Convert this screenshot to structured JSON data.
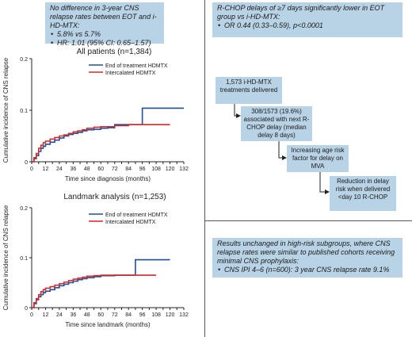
{
  "summary_left": {
    "heading": "No difference in 3-year CNS relapse rates between EOT and i-HD-MTX:",
    "bullets": [
      "5.8% vs 5.7%",
      "HR: 1.01 (95% CI: 0.65–1.57)"
    ]
  },
  "summary_right": {
    "heading": "R-CHOP delays of ≥7 days significantly lower in EOT group vs i-HD-MTX:",
    "bullets": [
      "OR 0.44 (0.33–0.59), p<0.0001"
    ]
  },
  "summary_bottom": {
    "heading": "Results unchanged in high-risk subgroups, where CNS relapse rates were similar to published cohorts receiving minimal CNS prophylaxis:",
    "bullets": [
      "CNS IPI 4–6 (n=600): 3 year CNS relapse rate 9.1%"
    ]
  },
  "flow": {
    "step1": "1,573 i-HD-MTX treatments delivered",
    "step2": "308/1573 (19.6%) associated with next R-CHOP delay (median delay 8 days)",
    "step3": "Increasing age risk factor for delay on MVA",
    "step4": "Reduction in delay risk when delivered <day 10 R-CHOP"
  },
  "colors": {
    "eot": "#1f4e9c",
    "intercalated": "#d12a2a",
    "box_fill": "#b9d3e6"
  },
  "chart_data": [
    {
      "type": "line",
      "title": "All patients (n=1,384)",
      "xlabel": "Time since diagnosis (months)",
      "ylabel": "Cumulative incidence of CNS relapse",
      "xlim": [
        0,
        132
      ],
      "ylim": [
        0,
        0.2
      ],
      "x_ticks": [
        0,
        6,
        12,
        18,
        24,
        30,
        36,
        42,
        48,
        54,
        60,
        66,
        72,
        78,
        84,
        90,
        96,
        102,
        108,
        114,
        120,
        126,
        132
      ],
      "x_tick_labels": [
        "0",
        "",
        "12",
        "",
        "24",
        "",
        "36",
        "",
        "48",
        "",
        "60",
        "",
        "72",
        "",
        "84",
        "",
        "96",
        "",
        "108",
        "",
        "120",
        "",
        "132"
      ],
      "y_ticks": [
        0,
        0.1,
        0.2
      ],
      "y_tick_labels": [
        "0",
        "0.1",
        "0.2"
      ],
      "legend_position": "top-right",
      "series": [
        {
          "name": "End of treatment HDMTX",
          "color": "#1f4e9c",
          "x": [
            0,
            2,
            4,
            6,
            8,
            10,
            12,
            16,
            20,
            24,
            28,
            32,
            36,
            40,
            44,
            48,
            54,
            60,
            66,
            72,
            84,
            96,
            96,
            132
          ],
          "y": [
            0,
            0.006,
            0.012,
            0.02,
            0.026,
            0.03,
            0.034,
            0.038,
            0.042,
            0.046,
            0.05,
            0.053,
            0.055,
            0.057,
            0.06,
            0.062,
            0.063,
            0.065,
            0.066,
            0.072,
            0.072,
            0.072,
            0.104,
            0.104
          ]
        },
        {
          "name": "Intercalated HDMTX",
          "color": "#d12a2a",
          "x": [
            0,
            2,
            4,
            6,
            8,
            10,
            12,
            16,
            20,
            24,
            28,
            32,
            36,
            40,
            44,
            48,
            54,
            60,
            72,
            84,
            96,
            108,
            120
          ],
          "y": [
            0,
            0.008,
            0.016,
            0.026,
            0.032,
            0.037,
            0.04,
            0.044,
            0.047,
            0.05,
            0.052,
            0.055,
            0.058,
            0.06,
            0.062,
            0.065,
            0.067,
            0.068,
            0.07,
            0.072,
            0.072,
            0.072,
            0.072
          ]
        }
      ]
    },
    {
      "type": "line",
      "title": "Landmark analysis (n=1,253)",
      "xlabel": "Time since landmark (months)",
      "ylabel": "Cumulative incidence of CNS relapse",
      "xlim": [
        0,
        132
      ],
      "ylim": [
        0,
        0.2
      ],
      "x_ticks": [
        0,
        6,
        12,
        18,
        24,
        30,
        36,
        42,
        48,
        54,
        60,
        66,
        72,
        78,
        84,
        90,
        96,
        102,
        108,
        114,
        120,
        126,
        132
      ],
      "x_tick_labels": [
        "0",
        "",
        "12",
        "",
        "24",
        "",
        "36",
        "",
        "48",
        "",
        "60",
        "",
        "72",
        "",
        "84",
        "",
        "96",
        "",
        "108",
        "",
        "120",
        "",
        "132"
      ],
      "y_ticks": [
        0,
        0.1,
        0.2
      ],
      "y_tick_labels": [
        "0",
        "0.1",
        "0.2"
      ],
      "legend_position": "top-right",
      "series": [
        {
          "name": "End of treatment HDMTX",
          "color": "#1f4e9c",
          "x": [
            0,
            2,
            4,
            6,
            8,
            10,
            12,
            16,
            20,
            24,
            28,
            32,
            36,
            40,
            44,
            48,
            54,
            60,
            66,
            72,
            84,
            90,
            90,
            120
          ],
          "y": [
            0,
            0.008,
            0.016,
            0.022,
            0.026,
            0.03,
            0.033,
            0.036,
            0.04,
            0.044,
            0.047,
            0.05,
            0.053,
            0.056,
            0.058,
            0.06,
            0.062,
            0.064,
            0.064,
            0.065,
            0.065,
            0.065,
            0.096,
            0.096
          ]
        },
        {
          "name": "Intercalated HDMTX",
          "color": "#d12a2a",
          "x": [
            0,
            2,
            4,
            6,
            8,
            10,
            12,
            16,
            20,
            24,
            28,
            32,
            36,
            40,
            44,
            48,
            54,
            60,
            72,
            84,
            96,
            108
          ],
          "y": [
            0,
            0.01,
            0.018,
            0.026,
            0.032,
            0.036,
            0.039,
            0.042,
            0.045,
            0.048,
            0.051,
            0.054,
            0.057,
            0.059,
            0.061,
            0.063,
            0.064,
            0.065,
            0.065,
            0.065,
            0.065,
            0.065
          ]
        }
      ]
    }
  ]
}
